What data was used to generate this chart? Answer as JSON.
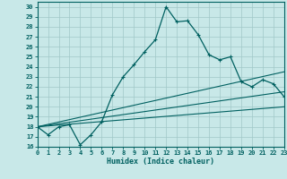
{
  "xlabel": "Humidex (Indice chaleur)",
  "background_color": "#c8e8e8",
  "grid_color": "#a0c8c8",
  "line_color": "#006060",
  "xlim": [
    0,
    23
  ],
  "ylim": [
    16,
    30.5
  ],
  "xticks": [
    0,
    1,
    2,
    3,
    4,
    5,
    6,
    7,
    8,
    9,
    10,
    11,
    12,
    13,
    14,
    15,
    16,
    17,
    18,
    19,
    20,
    21,
    22,
    23
  ],
  "yticks": [
    16,
    17,
    18,
    19,
    20,
    21,
    22,
    23,
    24,
    25,
    26,
    27,
    28,
    29,
    30
  ],
  "line1_x": [
    0,
    1,
    2,
    3,
    4,
    5,
    6,
    7,
    8,
    9,
    10,
    11,
    12,
    13,
    14,
    15,
    16,
    17,
    18,
    19,
    20,
    21,
    22,
    23
  ],
  "line1_y": [
    18.0,
    17.2,
    18.0,
    18.2,
    16.2,
    17.2,
    18.5,
    21.2,
    23.0,
    24.2,
    25.5,
    26.7,
    30.0,
    28.5,
    28.6,
    27.2,
    25.2,
    24.7,
    25.0,
    22.5,
    22.0,
    22.7,
    22.3,
    21.0
  ],
  "line2_x": [
    0,
    23
  ],
  "line2_y": [
    18.0,
    23.5
  ],
  "line3_x": [
    0,
    23
  ],
  "line3_y": [
    18.0,
    21.5
  ],
  "line4_x": [
    0,
    23
  ],
  "line4_y": [
    18.0,
    20.0
  ]
}
